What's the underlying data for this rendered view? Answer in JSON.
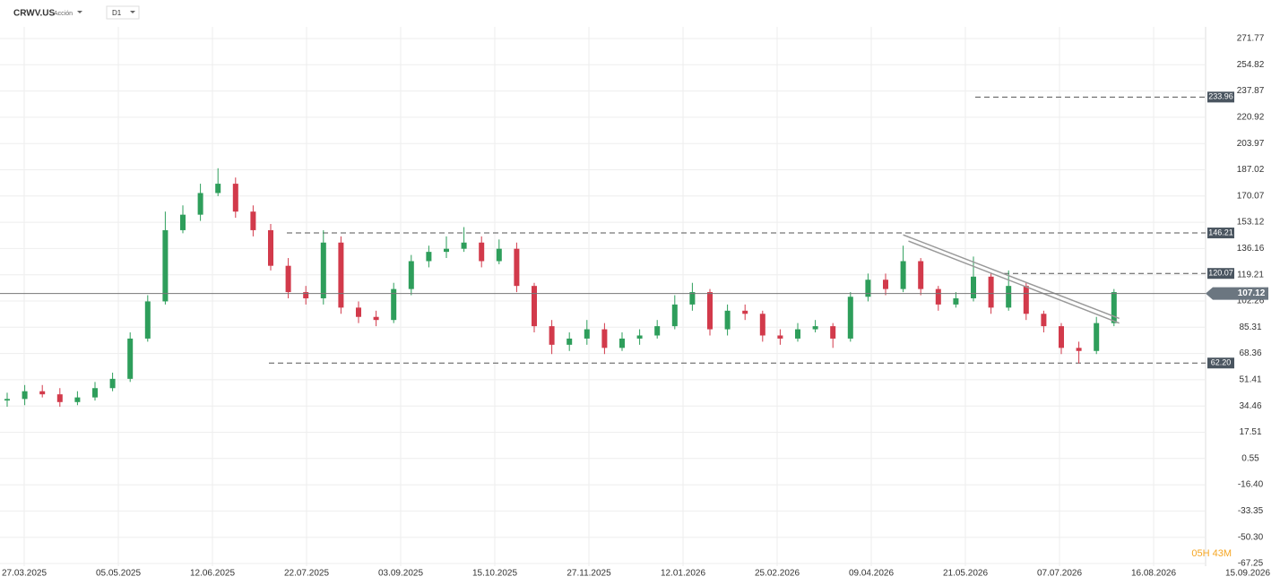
{
  "header": {
    "symbol": "CRWV.US",
    "kind": "Acción",
    "timeframe": "D1"
  },
  "chart_data": {
    "type": "candlestick",
    "open": [
      38,
      39,
      44,
      42,
      37,
      40,
      46,
      52,
      78,
      102,
      148,
      158,
      172,
      178,
      160,
      148,
      125,
      108,
      104,
      140,
      98,
      92,
      90,
      110,
      128,
      134,
      136,
      140,
      128,
      136,
      112,
      86,
      74,
      78,
      84,
      72,
      78,
      80,
      86,
      100,
      108,
      84,
      96,
      94,
      80,
      78,
      84,
      86,
      78,
      105,
      116,
      110,
      128,
      110,
      100,
      104,
      118,
      98,
      112,
      94,
      86,
      72,
      70,
      88
    ],
    "high": [
      43,
      48,
      48,
      46,
      44,
      50,
      56,
      82,
      106,
      160,
      164,
      178,
      188,
      182,
      164,
      152,
      130,
      112,
      148,
      144,
      102,
      96,
      114,
      132,
      138,
      144,
      150,
      144,
      142,
      140,
      114,
      90,
      82,
      90,
      88,
      82,
      84,
      90,
      106,
      114,
      110,
      100,
      100,
      96,
      84,
      88,
      90,
      88,
      108,
      120,
      120,
      138,
      130,
      112,
      108,
      131,
      120,
      122,
      114,
      96,
      88,
      76,
      92,
      110
    ],
    "low": [
      34,
      35,
      40,
      34,
      35,
      38,
      44,
      50,
      76,
      100,
      146,
      154,
      170,
      156,
      144,
      122,
      104,
      100,
      100,
      94,
      88,
      86,
      88,
      106,
      124,
      130,
      134,
      124,
      126,
      108,
      82,
      68,
      70,
      74,
      68,
      70,
      74,
      78,
      84,
      96,
      80,
      80,
      90,
      76,
      74,
      76,
      82,
      72,
      76,
      102,
      106,
      108,
      106,
      96,
      98,
      102,
      94,
      96,
      90,
      82,
      68,
      62,
      68,
      86
    ],
    "close": [
      39,
      44,
      42,
      37,
      40,
      46,
      52,
      78,
      102,
      148,
      158,
      172,
      178,
      160,
      148,
      125,
      108,
      104,
      140,
      98,
      92,
      90,
      110,
      128,
      134,
      136,
      140,
      128,
      136,
      112,
      86,
      74,
      78,
      84,
      72,
      78,
      80,
      86,
      100,
      108,
      84,
      96,
      94,
      80,
      78,
      84,
      86,
      78,
      105,
      116,
      110,
      128,
      110,
      100,
      104,
      118,
      98,
      112,
      94,
      86,
      72,
      70,
      88,
      108
    ],
    "up_color": "#2e9e5b",
    "down_color": "#d23a4b",
    "ylim": [
      -67.25,
      271.77
    ],
    "yticks": [
      271.77,
      254.82,
      237.87,
      220.92,
      203.97,
      187.02,
      170.07,
      153.12,
      136.16,
      119.21,
      102.26,
      85.31,
      68.36,
      51.41,
      34.46,
      17.51,
      0.55,
      {
        "value": -16.4,
        "label": "-16.40"
      },
      -33.35,
      {
        "value": -50.3,
        "label": "-50.30"
      },
      -67.25
    ],
    "xticks": [
      "27.03.2025",
      "05.05.2025",
      "12.06.2025",
      "22.07.2025",
      "03.09.2025",
      "15.10.2025",
      "27.11.2025",
      "12.01.2026",
      "25.02.2026",
      "09.04.2026",
      "21.05.2026",
      "07.07.2026",
      "16.08.2026",
      "15.09.2026"
    ],
    "levels": [
      233.96,
      146.21,
      120.07,
      {
        "value": 62.2,
        "label": "62.20"
      }
    ],
    "last_price": 107.12,
    "trendlines": [
      {
        "x": [
          51,
          63.3
        ],
        "y": [
          145,
          91
        ]
      },
      {
        "x": [
          51.3,
          63.3
        ],
        "y": [
          141,
          88
        ]
      }
    ],
    "countdown": "05H 43M",
    "grid": true
  }
}
